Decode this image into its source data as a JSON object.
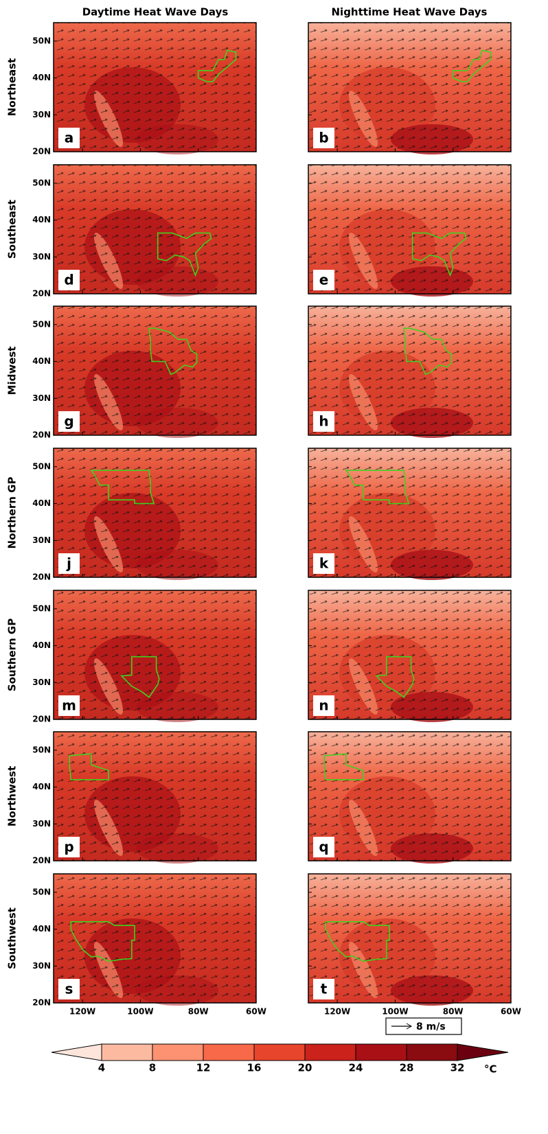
{
  "columns": [
    "Daytime Heat Wave Days",
    "Nighttime Heat Wave Days"
  ],
  "rows": [
    {
      "label": "Northeast",
      "panels": [
        "a",
        "b"
      ]
    },
    {
      "label": "Southeast",
      "panels": [
        "d",
        "e"
      ]
    },
    {
      "label": "Midwest",
      "panels": [
        "g",
        "h"
      ]
    },
    {
      "label": "Northern GP",
      "panels": [
        "j",
        "k"
      ]
    },
    {
      "label": "Southern GP",
      "panels": [
        "m",
        "n"
      ]
    },
    {
      "label": "Northwest",
      "panels": [
        "p",
        "q"
      ]
    },
    {
      "label": "Southwest",
      "panels": [
        "s",
        "t"
      ]
    }
  ],
  "lat_range": [
    20,
    55
  ],
  "lat_ticks": [
    {
      "value": 20,
      "label": "20N"
    },
    {
      "value": 30,
      "label": "30N"
    },
    {
      "value": 40,
      "label": "40N"
    },
    {
      "value": 50,
      "label": "50N"
    }
  ],
  "lon_range": [
    -130,
    -60
  ],
  "lon_ticks": [
    {
      "value": -120,
      "label": "120W"
    },
    {
      "value": -100,
      "label": "100W"
    },
    {
      "value": -80,
      "label": "80W"
    },
    {
      "value": -60,
      "label": "60W"
    }
  ],
  "reference_vector": {
    "label": "8 m/s"
  },
  "colorbar": {
    "levels": [
      4,
      8,
      12,
      16,
      20,
      24,
      28,
      32
    ],
    "colors": [
      "#fee5dc",
      "#fcbba1",
      "#fc9272",
      "#f8694a",
      "#e8452d",
      "#cb221b",
      "#a91016",
      "#8a0b10",
      "#6b0010"
    ],
    "unit": "°C"
  }
}
